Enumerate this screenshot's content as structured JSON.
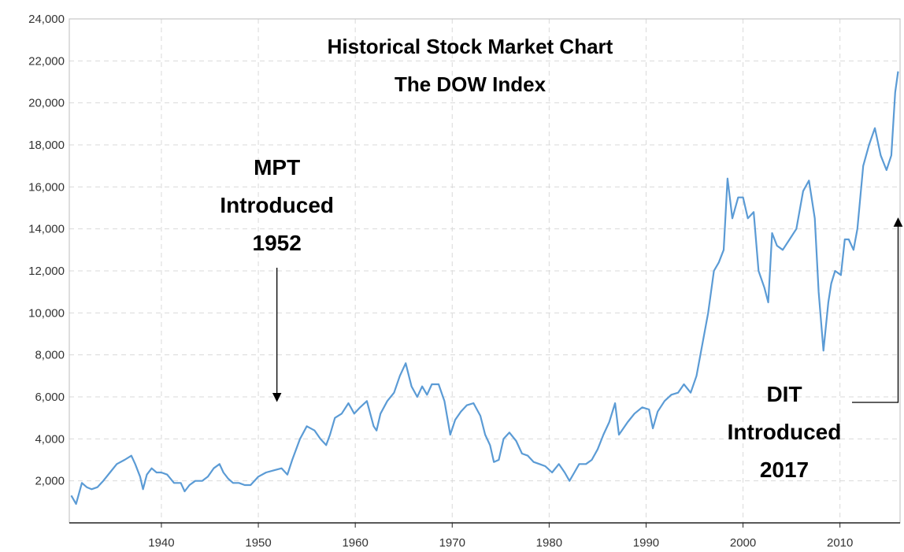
{
  "chart_data": {
    "type": "line",
    "title": "Historical Stock Market Chart",
    "subtitle": "The DOW Index",
    "xlabel": "",
    "ylabel": "",
    "xlim": [
      1930.5,
      2016.2
    ],
    "ylim": [
      0,
      24000
    ],
    "grid": true,
    "legend": "none",
    "line_color": "#5b9bd5",
    "x_ticks": [
      1940,
      1950,
      1960,
      1970,
      1980,
      1990,
      2000,
      2010
    ],
    "x_tick_labels": [
      "1940",
      "1950",
      "1960",
      "1970",
      "1980",
      "1990",
      "2000",
      "2010"
    ],
    "y_ticks": [
      2000,
      4000,
      6000,
      8000,
      10000,
      12000,
      14000,
      16000,
      18000,
      20000,
      22000,
      24000
    ],
    "y_tick_labels": [
      "2,000",
      "4,000",
      "6,000",
      "8,000",
      "10,000",
      "12,000",
      "14,000",
      "16,000",
      "18,000",
      "20,000",
      "22,000",
      "24,000"
    ],
    "series": [
      {
        "x": [
          1930.7,
          1931.2,
          1931.8,
          1932.3,
          1932.8,
          1933.4,
          1934.0,
          1934.7,
          1935.4,
          1936.2,
          1936.9,
          1937.3,
          1937.8,
          1938.1,
          1938.5,
          1939.0,
          1939.5,
          1940.0,
          1940.6,
          1941.3,
          1942.0,
          1942.4,
          1942.9,
          1943.5,
          1944.2,
          1944.8,
          1945.4,
          1946.0,
          1946.4,
          1946.9,
          1947.4,
          1948.0,
          1948.6,
          1949.2,
          1950.0,
          1950.8,
          1951.6,
          1952.4,
          1953.0,
          1953.5,
          1954.3,
          1955.0,
          1955.8,
          1956.4,
          1957.0,
          1957.4,
          1957.9,
          1958.6,
          1959.3,
          1959.9,
          1960.5,
          1961.2,
          1961.9,
          1962.2,
          1962.6,
          1963.3,
          1964.0,
          1964.6,
          1965.2,
          1965.8,
          1966.4,
          1966.9,
          1967.4,
          1967.9,
          1968.6,
          1969.2,
          1969.8,
          1970.3,
          1970.9,
          1971.5,
          1972.2,
          1972.9,
          1973.4,
          1973.9,
          1974.3,
          1974.8,
          1975.3,
          1975.9,
          1976.6,
          1977.2,
          1977.8,
          1978.4,
          1979.0,
          1979.6,
          1980.3,
          1981.0,
          1981.6,
          1982.1,
          1982.6,
          1983.1,
          1983.8,
          1984.4,
          1985.0,
          1985.6,
          1986.2,
          1986.8,
          1987.2,
          1987.5,
          1988.1,
          1988.8,
          1989.6,
          1990.3,
          1990.7,
          1991.2,
          1991.9,
          1992.6,
          1993.3,
          1993.9,
          1994.6,
          1995.2,
          1995.8,
          1996.4,
          1997.0,
          1997.5,
          1998.0,
          1998.4,
          1998.9,
          1999.5,
          2000.0,
          2000.5,
          2001.1,
          2001.6,
          2002.2,
          2002.6,
          2003.0,
          2003.5,
          2004.1,
          2004.8,
          2005.5,
          2006.2,
          2006.8,
          2007.4,
          2007.8,
          2008.3,
          2008.8,
          2009.1,
          2009.5,
          2010.1,
          2010.5,
          2010.9,
          2011.4,
          2011.8,
          2012.4,
          2013.0,
          2013.6,
          2014.2,
          2014.8,
          2015.3,
          2015.7,
          2016.0
        ],
        "y": [
          1300,
          900,
          1900,
          1700,
          1600,
          1700,
          2000,
          2400,
          2800,
          3000,
          3200,
          2800,
          2200,
          1600,
          2300,
          2600,
          2400,
          2400,
          2300,
          1900,
          1900,
          1500,
          1800,
          2000,
          2000,
          2200,
          2600,
          2800,
          2400,
          2100,
          1900,
          1900,
          1800,
          1800,
          2200,
          2400,
          2500,
          2600,
          2300,
          3000,
          4000,
          4600,
          4400,
          4000,
          3700,
          4200,
          5000,
          5200,
          5700,
          5200,
          5500,
          5800,
          4600,
          4400,
          5200,
          5800,
          6200,
          7000,
          7600,
          6500,
          6000,
          6500,
          6100,
          6600,
          6600,
          5800,
          4200,
          4900,
          5300,
          5600,
          5700,
          5100,
          4200,
          3700,
          2900,
          3000,
          4000,
          4300,
          3900,
          3300,
          3200,
          2900,
          2800,
          2700,
          2400,
          2800,
          2400,
          2000,
          2400,
          2800,
          2800,
          3000,
          3500,
          4200,
          4800,
          5700,
          4200,
          4400,
          4800,
          5200,
          5500,
          5400,
          4500,
          5300,
          5800,
          6100,
          6200,
          6600,
          6200,
          7000,
          8500,
          10000,
          12000,
          12400,
          13000,
          16400,
          14500,
          15500,
          15500,
          14500,
          14800,
          12000,
          11200,
          10500,
          13800,
          13200,
          13000,
          13500,
          14000,
          15800,
          16300,
          14500,
          11000,
          8200,
          10500,
          11400,
          12000,
          11800,
          13500,
          13500,
          13000,
          14000,
          17000,
          18000,
          18800,
          17500,
          16800,
          17500,
          20500,
          21500
        ]
      }
    ],
    "annotations": [
      {
        "lines": [
          "MPT",
          "Introduced",
          "1952"
        ],
        "x": 1952,
        "arrow": "down",
        "target_y": 5800
      },
      {
        "lines": [
          "DIT",
          "Introduced",
          "2017"
        ],
        "x": 2016,
        "arrow": "up",
        "target_y": 14500
      }
    ]
  }
}
